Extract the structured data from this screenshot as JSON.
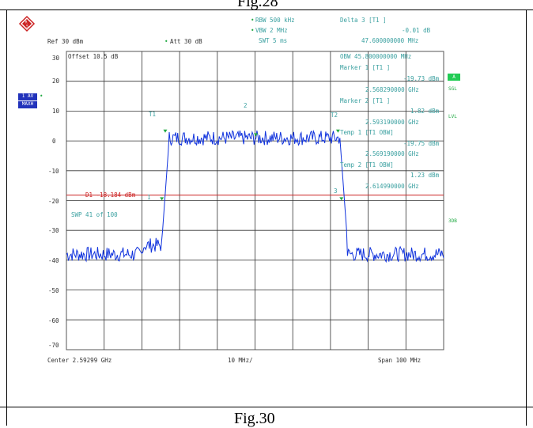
{
  "figure": {
    "top_caption": "Fig.28",
    "bottom_caption": "Fig.30"
  },
  "header": {
    "rbw": "RBW  500 kHz",
    "vbw": "VBW  2 MHz",
    "swt": "SWT  5 ms",
    "ref": "Ref    30 dBm",
    "att": "Att   30 dB",
    "delta_title": "Delta  3  [T1  ]",
    "delta_db": "-0.01  dB",
    "delta_mhz": "47.600000000 MHz"
  },
  "plot": {
    "offset_label": "Offset   10.5 dB",
    "d1_label": "D1  -18.184  dBm",
    "swp_label": "SWP      41  of     100",
    "x_center": "Center  2.59299 GHz",
    "x_div": "10 MHz/",
    "x_span": "Span  100 MHz",
    "y_ticks": [
      "30",
      "20",
      "10",
      "0",
      "-10",
      "-20",
      "-30",
      "-40",
      "-50",
      "-60",
      "-70"
    ],
    "marker_tags": [
      "T1",
      "T2",
      "1",
      "2",
      "3"
    ],
    "trace_color": "#1133dd",
    "display_line_color": "#cc2222"
  },
  "panel": {
    "lines": [
      "OBW  45.800000000 MHz",
      "Marker  1  [T1  ]",
      "-19.73  dBm",
      "2.568290000 GHz",
      "Marker  2  [T1  ]",
      "1.82  dBm",
      "2.593190000 GHz",
      "Temp  1  [T1 OBW]",
      "-19.75  dBm",
      "2.569190000 GHz",
      "Temp  2  [T1 OBW]",
      "1.23  dBm",
      "2.614990000 GHz"
    ]
  },
  "side": {
    "av_label": "1 AV",
    "maxh_label": "MAXH",
    "a_label": "A",
    "sgl": "SGL",
    "lvl": "LVL",
    "three_db": "3DB"
  }
}
